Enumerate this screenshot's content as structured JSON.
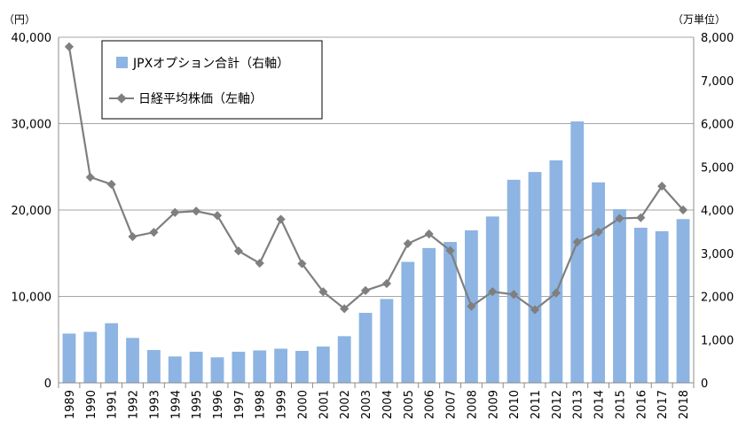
{
  "chart_data": {
    "type": "bar+line",
    "categories": [
      "1989",
      "1990",
      "1991",
      "1992",
      "1993",
      "1994",
      "1995",
      "1996",
      "1997",
      "1998",
      "1999",
      "2000",
      "2001",
      "2002",
      "2003",
      "2004",
      "2005",
      "2006",
      "2007",
      "2008",
      "2009",
      "2010",
      "2011",
      "2012",
      "2013",
      "2014",
      "2015",
      "2016",
      "2017",
      "2018"
    ],
    "series": [
      {
        "name": "JPXオプション合計（右軸）",
        "kind": "bar",
        "axis": "right",
        "color": "#8DB4E2",
        "values": [
          1140,
          1180,
          1380,
          1040,
          760,
          610,
          720,
          590,
          720,
          750,
          790,
          740,
          840,
          1080,
          1620,
          1940,
          2800,
          3120,
          3260,
          3530,
          3850,
          4700,
          4880,
          5150,
          6050,
          4640,
          4020,
          3590,
          3510,
          3790
        ]
      },
      {
        "name": "日経平均株価（左軸）",
        "kind": "line",
        "axis": "left",
        "color": "#7F7F7F",
        "values": [
          38900,
          23800,
          22980,
          16920,
          17420,
          19720,
          19870,
          19360,
          15260,
          13840,
          18930,
          13790,
          10540,
          8580,
          10680,
          11490,
          16110,
          17230,
          15310,
          8860,
          10550,
          10230,
          8460,
          10400,
          16290,
          17450,
          19030,
          19110,
          22760,
          20010
        ]
      }
    ],
    "y_left": {
      "unit": "（円）",
      "min": 0,
      "max": 40000,
      "ticks": [
        "0",
        "10,000",
        "20,000",
        "30,000",
        "40,000"
      ]
    },
    "y_right": {
      "unit": "（万単位）",
      "min": 0,
      "max": 8000,
      "ticks": [
        "0",
        "1,000",
        "2,000",
        "3,000",
        "4,000",
        "5,000",
        "6,000",
        "7,000",
        "8,000"
      ]
    },
    "legend_position": "top-left",
    "grid": true
  }
}
